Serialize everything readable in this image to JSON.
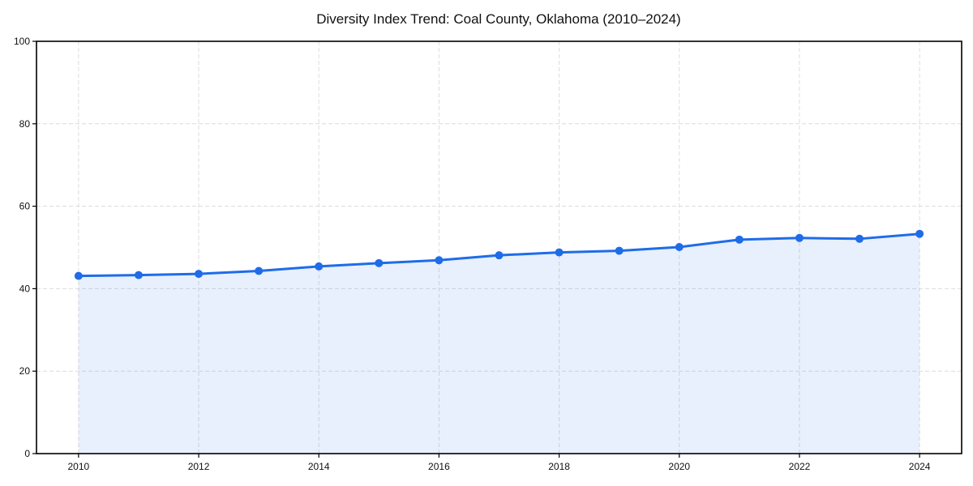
{
  "page": {
    "background_color": "#ffffff"
  },
  "chart_data": {
    "type": "area",
    "title": "Diversity Index Trend: Coal County, Oklahoma (2010–2024)",
    "x": [
      2010,
      2011,
      2012,
      2013,
      2014,
      2015,
      2016,
      2017,
      2018,
      2019,
      2020,
      2021,
      2022,
      2023,
      2024
    ],
    "series": [
      {
        "name": "Diversity Index",
        "values": [
          43.1,
          43.3,
          43.6,
          44.3,
          45.4,
          46.2,
          46.9,
          48.1,
          48.8,
          49.2,
          50.1,
          51.9,
          52.3,
          52.1,
          53.3
        ]
      }
    ],
    "xlabel": "",
    "ylabel": "",
    "xlim": [
      2009.3,
      2024.7
    ],
    "ylim": [
      0,
      100
    ],
    "xticks": [
      2010,
      2012,
      2014,
      2016,
      2018,
      2020,
      2022,
      2024
    ],
    "yticks": [
      0,
      20,
      40,
      60,
      80,
      100
    ],
    "grid": true,
    "grid_style": "dashed",
    "legend": "none",
    "colors": {
      "line": "#1f6ce8",
      "marker": "#1f6ce8",
      "fill": "rgba(31,108,232,0.10)",
      "grid": "#dcdcdc",
      "axis": "#000000",
      "text": "#111111"
    }
  }
}
